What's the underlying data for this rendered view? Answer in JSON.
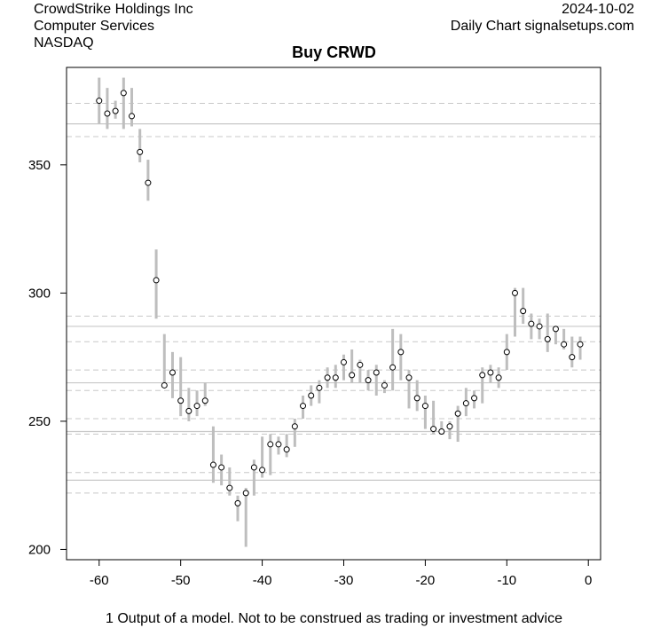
{
  "header": {
    "company": "CrowdStrike Holdings Inc",
    "sector": "Computer Services",
    "exchange": "NASDAQ",
    "date": "2024-10-02",
    "source": "Daily Chart signalsetups.com"
  },
  "footer": "1 Output of a model. Not to be construed as trading or investment advice",
  "chart_data": {
    "type": "range-dot",
    "title": "Buy CRWD",
    "xlabel": "",
    "ylabel": "",
    "xlim": [
      -64,
      1.5
    ],
    "ylim": [
      196,
      388
    ],
    "xticks": [
      -60,
      -50,
      -40,
      -30,
      -20,
      -10,
      0
    ],
    "yticks": [
      200,
      250,
      300,
      350
    ],
    "grid": false,
    "colors": {
      "range_bar": "#bebebe",
      "solid_line": "#c8c8c8",
      "dashed_line": "#c8c8c8",
      "point_fill": "#ffffff",
      "point_stroke": "#000000"
    },
    "solid_lines": [
      366,
      287,
      265,
      246,
      227
    ],
    "dashed_lines": [
      374,
      361,
      291,
      281,
      270,
      262,
      251,
      245,
      230,
      222
    ],
    "x": [
      -60,
      -59,
      -58,
      -57,
      -56,
      -55,
      -54,
      -53,
      -52,
      -51,
      -50,
      -49,
      -48,
      -47,
      -46,
      -45,
      -44,
      -43,
      -42,
      -41,
      -40,
      -39,
      -38,
      -37,
      -36,
      -35,
      -34,
      -33,
      -32,
      -31,
      -30,
      -29,
      -28,
      -27,
      -26,
      -25,
      -24,
      -23,
      -22,
      -21,
      -20,
      -19,
      -18,
      -17,
      -16,
      -15,
      -14,
      -13,
      -12,
      -11,
      -10,
      -9,
      -8,
      -7,
      -6,
      -5,
      -4,
      -3,
      -2,
      -1
    ],
    "close": [
      375,
      370,
      371,
      378,
      369,
      355,
      343,
      305,
      264,
      269,
      258,
      254,
      256,
      258,
      233,
      232,
      224,
      218,
      222,
      232,
      231,
      241,
      241,
      239,
      248,
      256,
      260,
      263,
      267,
      267,
      273,
      268,
      272,
      266,
      269,
      264,
      271,
      277,
      267,
      259,
      256,
      247,
      246,
      248,
      253,
      257,
      259,
      268,
      269,
      267,
      277,
      300,
      293,
      288,
      287,
      282,
      286,
      280,
      275,
      280
    ],
    "high": [
      384,
      380,
      375,
      384,
      380,
      364,
      352,
      317,
      284,
      277,
      275,
      263,
      262,
      265,
      248,
      237,
      232,
      221,
      224,
      235,
      244,
      245,
      244,
      245,
      251,
      260,
      264,
      266,
      271,
      272,
      276,
      278,
      274,
      270,
      272,
      266,
      286,
      284,
      270,
      266,
      260,
      258,
      250,
      250,
      256,
      263,
      262,
      271,
      272,
      271,
      284,
      302,
      302,
      292,
      290,
      292,
      287,
      286,
      283,
      283
    ],
    "low": [
      366,
      364,
      368,
      364,
      365,
      351,
      336,
      290,
      263,
      259,
      252,
      250,
      252,
      256,
      226,
      225,
      221,
      211,
      201,
      221,
      228,
      229,
      237,
      236,
      240,
      251,
      256,
      257,
      263,
      263,
      266,
      265,
      265,
      262,
      260,
      261,
      262,
      266,
      255,
      254,
      247,
      245,
      245,
      243,
      242,
      252,
      255,
      257,
      265,
      263,
      270,
      283,
      288,
      282,
      282,
      277,
      280,
      278,
      271,
      274
    ]
  }
}
